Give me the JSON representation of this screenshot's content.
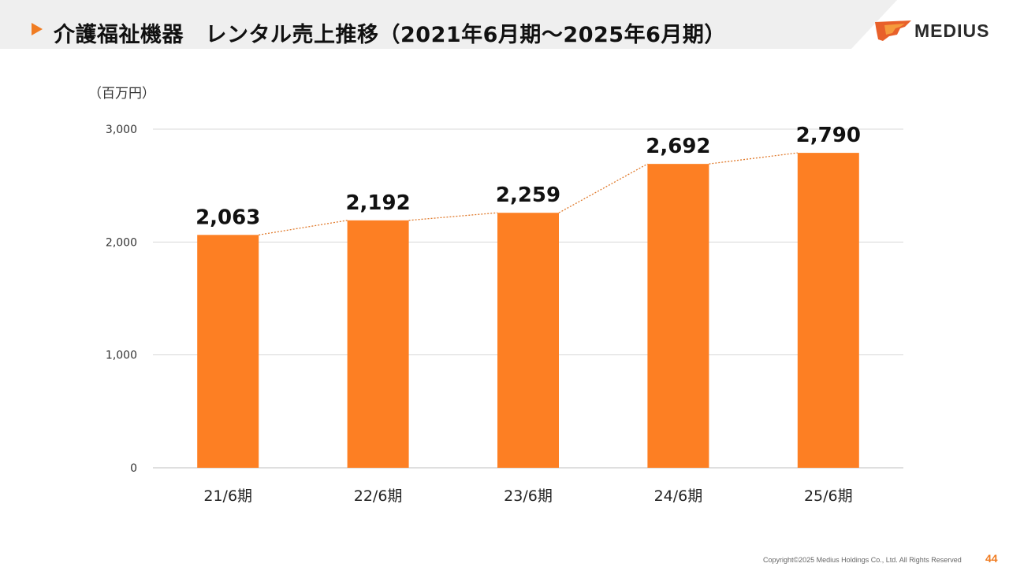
{
  "header": {
    "title": "介護福祉機器　レンタル売上推移（2021年6月期～2025年6月期）",
    "logo_text": "MEDIUS"
  },
  "chart_data": {
    "type": "bar",
    "unit_label": "（百万円）",
    "categories": [
      "21/6期",
      "22/6期",
      "23/6期",
      "24/6期",
      "25/6期"
    ],
    "values": [
      2063,
      2192,
      2259,
      2692,
      2790
    ],
    "data_labels": [
      "2,063",
      "2,192",
      "2,259",
      "2,692",
      "2,790"
    ],
    "ylim": [
      0,
      3000
    ],
    "yticks": [
      0,
      1000,
      2000,
      3000
    ],
    "ytick_labels": [
      "0",
      "1,000",
      "2,000",
      "3,000"
    ],
    "grid": true,
    "legend": "none",
    "trend_line": "dotted",
    "bar_color": "#fd7f23",
    "trend_color": "#e07a2c"
  },
  "footer": {
    "copyright": "Copyright©2025 Medius Holdings Co., Ltd. All Rights Reserved",
    "page_number": "44"
  },
  "colors": {
    "accent": "#f07c22",
    "title_band": "#efefef"
  }
}
